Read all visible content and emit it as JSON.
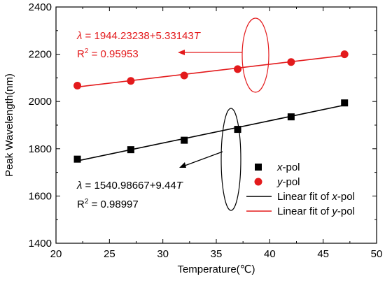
{
  "chart_data": {
    "type": "scatter",
    "xlabel": "Temperature(℃)",
    "ylabel": "Peak Wavelength(nm)",
    "xlim": [
      20,
      50
    ],
    "ylim": [
      1400,
      2400
    ],
    "x_ticks": [
      20,
      25,
      30,
      35,
      40,
      45,
      50
    ],
    "y_ticks": [
      1400,
      1600,
      1800,
      2000,
      2200,
      2400
    ],
    "x_tick_labels": [
      "20",
      "25",
      "30",
      "35",
      "40",
      "45",
      "50"
    ],
    "y_tick_labels": [
      "1400",
      "1600",
      "1800",
      "2000",
      "2200",
      "2400"
    ],
    "grid": false,
    "legend_position": "bottom-right",
    "series": [
      {
        "name": "x-pol",
        "marker": "square",
        "color": "#000000",
        "x": [
          22,
          27,
          32,
          37,
          42,
          47
        ],
        "y": [
          1756,
          1796,
          1836,
          1882,
          1935,
          1994
        ]
      },
      {
        "name": "y-pol",
        "marker": "circle",
        "color": "#e31a1c",
        "x": [
          22,
          27,
          32,
          37,
          42,
          47
        ],
        "y": [
          2067,
          2087,
          2110,
          2137,
          2167,
          2200
        ]
      }
    ],
    "fits": [
      {
        "name": "Linear fit of x-pol",
        "color": "#000000",
        "intercept": 1540.98667,
        "slope": 9.44,
        "x_range": [
          22,
          47
        ]
      },
      {
        "name": "Linear fit of y-pol",
        "color": "#e31a1c",
        "intercept": 1944.23238,
        "slope": 5.33143,
        "x_range": [
          22,
          47
        ]
      }
    ],
    "annotations": [
      {
        "id": "y",
        "color": "#e31a1c",
        "lambda": "λ",
        "equation_mid": " = 1944.23238+5.33143",
        "T": "T",
        "r2_label": "R",
        "r2_value": " = 0.95953"
      },
      {
        "id": "x",
        "color": "#000000",
        "lambda": "λ",
        "equation_mid": " = 1540.98667+9.44",
        "T": "T",
        "r2_label": "R",
        "r2_value": " = 0.98997"
      }
    ],
    "legend": [
      {
        "kind": "square",
        "color": "#000000",
        "italic": "x",
        "rest": "-pol"
      },
      {
        "kind": "circle",
        "color": "#e31a1c",
        "italic": "y",
        "rest": "-pol"
      },
      {
        "kind": "line",
        "color": "#000000",
        "prefix": "Linear fit of ",
        "italic": "x",
        "rest": "-pol"
      },
      {
        "kind": "line",
        "color": "#e31a1c",
        "prefix": "Linear fit of ",
        "italic": "y",
        "rest": "-pol"
      }
    ]
  }
}
